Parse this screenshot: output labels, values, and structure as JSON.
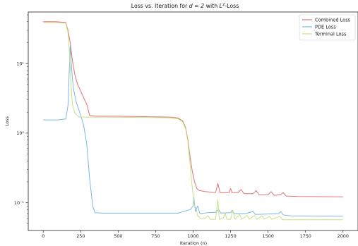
{
  "chart_data": {
    "type": "line",
    "title_prefix": "Loss vs. Iteration for ",
    "title_math": "d = 2",
    "title_mid": " with ",
    "title_L": "L",
    "title_sup": "2",
    "title_suffix": "-Loss",
    "xlabel": "Iteration (n)",
    "ylabel": "Loss",
    "xlim": [
      -100,
      2100
    ],
    "ylim": [
      0.04,
      55
    ],
    "y_scale": "log",
    "grid": false,
    "legend_position": "top-right",
    "x_ticks": [
      0,
      250,
      500,
      750,
      1000,
      1250,
      1500,
      1750,
      2000
    ],
    "x_tick_labels": [
      "0",
      "250",
      "500",
      "750",
      "1000",
      "1250",
      "1500",
      "1750",
      "2000"
    ],
    "y_ticks": [
      0.1,
      1,
      10
    ],
    "y_tick_labels": [
      "10⁻¹",
      "10⁰",
      "10¹"
    ],
    "series": [
      {
        "name": "Combined Loss",
        "color": "#e57373",
        "points": [
          [
            0,
            40
          ],
          [
            80,
            40
          ],
          [
            150,
            39
          ],
          [
            165,
            30
          ],
          [
            180,
            20
          ],
          [
            195,
            11
          ],
          [
            210,
            7
          ],
          [
            230,
            5
          ],
          [
            260,
            3.6
          ],
          [
            290,
            2.6
          ],
          [
            310,
            1.8
          ],
          [
            350,
            1.76
          ],
          [
            500,
            1.75
          ],
          [
            700,
            1.72
          ],
          [
            850,
            1.7
          ],
          [
            900,
            1.65
          ],
          [
            930,
            1.5
          ],
          [
            950,
            1.2
          ],
          [
            965,
            0.8
          ],
          [
            980,
            0.45
          ],
          [
            995,
            0.28
          ],
          [
            1010,
            0.2
          ],
          [
            1025,
            0.16
          ],
          [
            1040,
            0.15
          ],
          [
            1080,
            0.145
          ],
          [
            1150,
            0.14
          ],
          [
            1165,
            0.19
          ],
          [
            1180,
            0.14
          ],
          [
            1240,
            0.14
          ],
          [
            1250,
            0.16
          ],
          [
            1260,
            0.14
          ],
          [
            1300,
            0.14
          ],
          [
            1320,
            0.155
          ],
          [
            1340,
            0.135
          ],
          [
            1400,
            0.135
          ],
          [
            1420,
            0.15
          ],
          [
            1440,
            0.13
          ],
          [
            1500,
            0.13
          ],
          [
            1520,
            0.145
          ],
          [
            1540,
            0.128
          ],
          [
            1580,
            0.13
          ],
          [
            1600,
            0.14
          ],
          [
            1620,
            0.125
          ],
          [
            1700,
            0.123
          ],
          [
            2000,
            0.122
          ]
        ]
      },
      {
        "name": "PDE Loss",
        "color": "#7bb8e8",
        "points": [
          [
            0,
            1.55
          ],
          [
            100,
            1.55
          ],
          [
            150,
            1.6
          ],
          [
            165,
            2.5
          ],
          [
            180,
            18
          ],
          [
            190,
            8
          ],
          [
            200,
            4.5
          ],
          [
            220,
            2.8
          ],
          [
            250,
            1.8
          ],
          [
            270,
            1.3
          ],
          [
            290,
            0.7
          ],
          [
            310,
            0.22
          ],
          [
            330,
            0.09
          ],
          [
            345,
            0.072
          ],
          [
            400,
            0.071
          ],
          [
            700,
            0.071
          ],
          [
            900,
            0.071
          ],
          [
            980,
            0.08
          ],
          [
            1000,
            0.09
          ],
          [
            1005,
            0.12
          ],
          [
            1015,
            0.075
          ],
          [
            1030,
            0.09
          ],
          [
            1045,
            0.07
          ],
          [
            1100,
            0.072
          ],
          [
            1150,
            0.073
          ],
          [
            1170,
            0.08
          ],
          [
            1185,
            0.071
          ],
          [
            1250,
            0.072
          ],
          [
            1260,
            0.078
          ],
          [
            1275,
            0.07
          ],
          [
            1350,
            0.07
          ],
          [
            1400,
            0.075
          ],
          [
            1415,
            0.068
          ],
          [
            1500,
            0.069
          ],
          [
            1570,
            0.07
          ],
          [
            1585,
            0.075
          ],
          [
            1600,
            0.067
          ],
          [
            1650,
            0.065
          ],
          [
            2000,
            0.064
          ]
        ]
      },
      {
        "name": "Terminal Loss",
        "color": "#c5e384",
        "points": [
          [
            0,
            38.5
          ],
          [
            100,
            38.5
          ],
          [
            150,
            38
          ],
          [
            165,
            28
          ],
          [
            175,
            14
          ],
          [
            185,
            5
          ],
          [
            195,
            2.6
          ],
          [
            210,
            1.95
          ],
          [
            240,
            1.7
          ],
          [
            400,
            1.7
          ],
          [
            700,
            1.68
          ],
          [
            850,
            1.66
          ],
          [
            900,
            1.6
          ],
          [
            930,
            1.45
          ],
          [
            950,
            1.15
          ],
          [
            965,
            0.75
          ],
          [
            980,
            0.35
          ],
          [
            990,
            0.2
          ],
          [
            1000,
            0.13
          ],
          [
            1010,
            0.09
          ],
          [
            1020,
            0.085
          ],
          [
            1030,
            0.065
          ],
          [
            1050,
            0.06
          ],
          [
            1080,
            0.06
          ],
          [
            1100,
            0.065
          ],
          [
            1115,
            0.058
          ],
          [
            1150,
            0.058
          ],
          [
            1165,
            0.11
          ],
          [
            1175,
            0.058
          ],
          [
            1200,
            0.06
          ],
          [
            1215,
            0.07
          ],
          [
            1225,
            0.058
          ],
          [
            1250,
            0.058
          ],
          [
            1265,
            0.078
          ],
          [
            1280,
            0.058
          ],
          [
            1310,
            0.068
          ],
          [
            1325,
            0.058
          ],
          [
            1360,
            0.066
          ],
          [
            1375,
            0.058
          ],
          [
            1410,
            0.066
          ],
          [
            1425,
            0.058
          ],
          [
            1460,
            0.065
          ],
          [
            1475,
            0.058
          ],
          [
            1510,
            0.064
          ],
          [
            1525,
            0.058
          ],
          [
            1580,
            0.064
          ],
          [
            1595,
            0.057
          ],
          [
            1650,
            0.057
          ],
          [
            2000,
            0.057
          ]
        ]
      }
    ]
  }
}
